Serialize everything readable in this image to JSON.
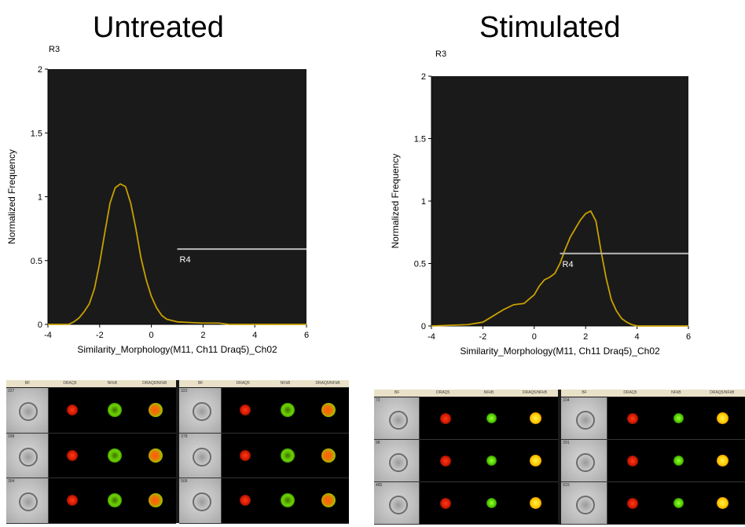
{
  "chart_data": [
    {
      "type": "line",
      "title": "Untreated",
      "gate_label": "R3",
      "xlabel": "Similarity_Morphology(M11, Ch11 Draq5)_Ch02",
      "ylabel": "Normalized Frequency",
      "xlim": [
        -4,
        6
      ],
      "ylim": [
        0,
        2
      ],
      "xticks": [
        -4,
        -2,
        0,
        2,
        4,
        6
      ],
      "yticks": [
        0,
        0.5,
        1,
        1.5,
        2
      ],
      "background": "#1a1a1a",
      "line_color": "#c8a000",
      "grid": false,
      "series": [
        {
          "x": [
            -4,
            -3.2,
            -3,
            -2.8,
            -2.6,
            -2.4,
            -2.2,
            -2,
            -1.8,
            -1.6,
            -1.4,
            -1.2,
            -1,
            -0.8,
            -0.6,
            -0.4,
            -0.2,
            0,
            0.2,
            0.4,
            0.6,
            0.8,
            1,
            1.5,
            2,
            2.6,
            3,
            4,
            6
          ],
          "y": [
            0,
            0,
            0.02,
            0.05,
            0.1,
            0.16,
            0.28,
            0.48,
            0.72,
            0.95,
            1.07,
            1.1,
            1.08,
            0.95,
            0.75,
            0.52,
            0.35,
            0.22,
            0.13,
            0.07,
            0.04,
            0.03,
            0.02,
            0.015,
            0.01,
            0.01,
            0,
            0,
            0
          ]
        }
      ],
      "region": {
        "label": "R4",
        "x_start": 1,
        "x_end": 6,
        "y": 0.59
      }
    },
    {
      "type": "line",
      "title": "Stimulated",
      "gate_label": "R3",
      "xlabel": "Similarity_Morphology(M11, Ch11 Draq5)_Ch02",
      "ylabel": "Normalized Frequency",
      "xlim": [
        -4,
        6
      ],
      "ylim": [
        0,
        2
      ],
      "xticks": [
        -4,
        -2,
        0,
        2,
        4,
        6
      ],
      "yticks": [
        0,
        0.5,
        1,
        1.5,
        2
      ],
      "background": "#1a1a1a",
      "line_color": "#c8a000",
      "grid": false,
      "series": [
        {
          "x": [
            -4,
            -2.6,
            -2,
            -1.6,
            -1.2,
            -0.8,
            -0.4,
            0,
            0.2,
            0.4,
            0.6,
            0.8,
            1,
            1.2,
            1.4,
            1.6,
            1.8,
            2,
            2.2,
            2.4,
            2.6,
            2.8,
            3,
            3.2,
            3.4,
            3.6,
            3.8,
            4,
            6
          ],
          "y": [
            0,
            0.01,
            0.03,
            0.08,
            0.13,
            0.17,
            0.18,
            0.25,
            0.32,
            0.37,
            0.39,
            0.42,
            0.5,
            0.61,
            0.71,
            0.78,
            0.85,
            0.9,
            0.92,
            0.84,
            0.6,
            0.38,
            0.21,
            0.12,
            0.06,
            0.03,
            0.01,
            0,
            0
          ]
        }
      ],
      "region": {
        "label": "R4",
        "x_start": 1,
        "x_end": 6,
        "y": 0.58
      }
    }
  ],
  "galleries": [
    {
      "headers": [
        "BF",
        "DRAQ5",
        "NFkB",
        "DRAQ5/NFkB"
      ],
      "objects": [
        "227",
        "298",
        "304",
        "322",
        "378",
        "506"
      ]
    },
    {
      "headers": [
        "BF",
        "DRAQ5",
        "NFkB",
        "DRAQ5/NFkB"
      ],
      "objects": [
        "73",
        "98",
        "485",
        "104",
        "291",
        "615"
      ]
    }
  ]
}
